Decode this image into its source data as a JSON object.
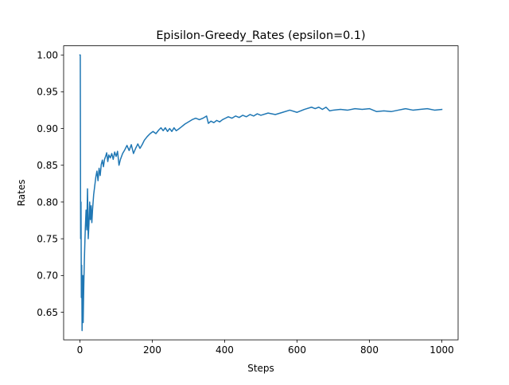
{
  "chart_data": {
    "type": "line",
    "title": "Episilon-Greedy_Rates (epsilon=0.1)",
    "xlabel": "Steps",
    "ylabel": "Rates",
    "xlim": [
      -45,
      1045
    ],
    "ylim": [
      0.6125,
      1.0125
    ],
    "xticks": [
      0,
      200,
      400,
      600,
      800,
      1000
    ],
    "xtick_labels": [
      "0",
      "200",
      "400",
      "600",
      "800",
      "1000"
    ],
    "yticks": [
      0.65,
      0.7,
      0.75,
      0.8,
      0.85,
      0.9,
      0.95,
      1.0
    ],
    "ytick_labels": [
      "0.65",
      "0.70",
      "0.75",
      "0.80",
      "0.85",
      "0.90",
      "0.95",
      "1.00"
    ],
    "grid": false,
    "legend": "none",
    "series": [
      {
        "color": "#1f77b4",
        "x": [
          0,
          1,
          2,
          3,
          4,
          5,
          6,
          7,
          8,
          9,
          10,
          11,
          12,
          13,
          14,
          15,
          17,
          19,
          21,
          23,
          25,
          27,
          29,
          31,
          33,
          35,
          38,
          41,
          44,
          47,
          50,
          53,
          56,
          59,
          62,
          65,
          68,
          71,
          74,
          77,
          80,
          84,
          88,
          92,
          96,
          100,
          104,
          108,
          112,
          118,
          124,
          130,
          136,
          142,
          148,
          154,
          160,
          166,
          172,
          178,
          186,
          194,
          202,
          210,
          218,
          224,
          230,
          236,
          242,
          248,
          254,
          260,
          266,
          272,
          280,
          290,
          300,
          310,
          320,
          330,
          340,
          350,
          355,
          362,
          370,
          378,
          386,
          394,
          402,
          410,
          420,
          430,
          440,
          450,
          460,
          470,
          480,
          490,
          500,
          520,
          540,
          560,
          580,
          600,
          620,
          640,
          650,
          660,
          670,
          680,
          690,
          700,
          720,
          740,
          760,
          780,
          800,
          820,
          840,
          860,
          880,
          900,
          920,
          940,
          960,
          980,
          1000
        ],
        "values": [
          1.0,
          1.0,
          0.75,
          0.8,
          0.67,
          0.714,
          0.625,
          0.667,
          0.7,
          0.636,
          0.667,
          0.692,
          0.714,
          0.733,
          0.75,
          0.765,
          0.789,
          0.762,
          0.818,
          0.75,
          0.77,
          0.8,
          0.776,
          0.795,
          0.772,
          0.79,
          0.81,
          0.822,
          0.834,
          0.842,
          0.829,
          0.846,
          0.836,
          0.851,
          0.857,
          0.848,
          0.858,
          0.862,
          0.867,
          0.855,
          0.864,
          0.86,
          0.866,
          0.858,
          0.868,
          0.862,
          0.869,
          0.85,
          0.858,
          0.866,
          0.871,
          0.877,
          0.87,
          0.878,
          0.866,
          0.873,
          0.879,
          0.873,
          0.878,
          0.884,
          0.889,
          0.893,
          0.896,
          0.893,
          0.898,
          0.901,
          0.897,
          0.901,
          0.896,
          0.9,
          0.896,
          0.901,
          0.897,
          0.899,
          0.902,
          0.906,
          0.909,
          0.912,
          0.914,
          0.912,
          0.914,
          0.917,
          0.907,
          0.91,
          0.908,
          0.911,
          0.909,
          0.912,
          0.914,
          0.916,
          0.914,
          0.917,
          0.915,
          0.918,
          0.916,
          0.919,
          0.917,
          0.92,
          0.918,
          0.921,
          0.919,
          0.922,
          0.925,
          0.922,
          0.926,
          0.929,
          0.927,
          0.929,
          0.926,
          0.929,
          0.924,
          0.925,
          0.926,
          0.925,
          0.927,
          0.926,
          0.927,
          0.923,
          0.924,
          0.923,
          0.925,
          0.927,
          0.925,
          0.926,
          0.927,
          0.925,
          0.926
        ]
      }
    ]
  }
}
